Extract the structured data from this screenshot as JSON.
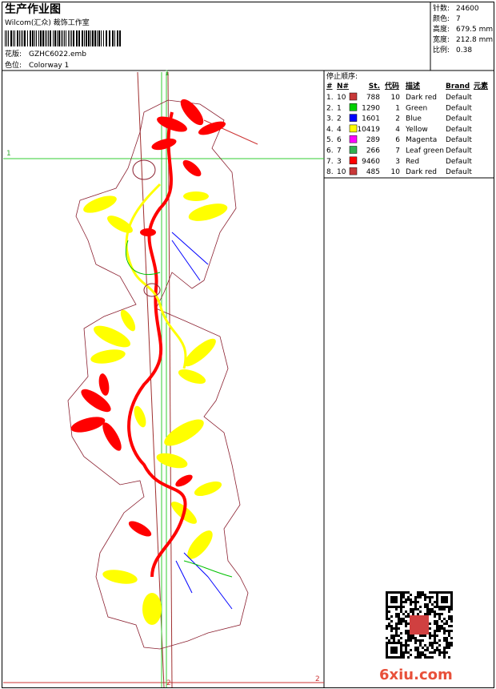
{
  "header": {
    "title": "生产作业图",
    "company": "Wilcom(汇众) 裁饰工作室",
    "design_label": "花版:",
    "design": "GZHC6022.emb",
    "colorway_label": "色位:",
    "colorway": "Colorway 1"
  },
  "stats": [
    {
      "label": "针数:",
      "value": "24600"
    },
    {
      "label": "颜色:",
      "value": "7"
    },
    {
      "label": "高度:",
      "value": "679.5 mm"
    },
    {
      "label": "宽度:",
      "value": "212.8 mm"
    },
    {
      "label": "比例:",
      "value": "0.38"
    }
  ],
  "stop_sequence": {
    "title": "停止顺序:",
    "headers": [
      "#",
      "N#",
      "St.",
      "代码",
      "描述",
      "Brand",
      "元素"
    ],
    "rows": [
      {
        "index": "1.",
        "needle": 10,
        "color": "#c83838",
        "stitches": 788,
        "code": 10,
        "description": "Dark red",
        "brand": "Default"
      },
      {
        "index": "2.",
        "needle": 1,
        "color": "#00d000",
        "stitches": 1290,
        "code": 1,
        "description": "Green",
        "brand": "Default"
      },
      {
        "index": "3.",
        "needle": 2,
        "color": "#0000ff",
        "stitches": 1601,
        "code": 2,
        "description": "Blue",
        "brand": "Default"
      },
      {
        "index": "4.",
        "needle": 4,
        "color": "#ffff00",
        "stitches": 10419,
        "code": 4,
        "description": "Yellow",
        "brand": "Default"
      },
      {
        "index": "5.",
        "needle": 6,
        "color": "#ff00ff",
        "stitches": 289,
        "code": 6,
        "description": "Magenta",
        "brand": "Default"
      },
      {
        "index": "6.",
        "needle": 7,
        "color": "#30b050",
        "stitches": 266,
        "code": 7,
        "description": "Leaf green",
        "brand": "Default"
      },
      {
        "index": "7.",
        "needle": 3,
        "color": "#ff0000",
        "stitches": 9460,
        "code": 3,
        "description": "Red",
        "brand": "Default"
      },
      {
        "index": "8.",
        "needle": 10,
        "color": "#c83838",
        "stitches": 485,
        "code": 10,
        "description": "Dark red",
        "brand": "Default"
      }
    ]
  },
  "guides": {
    "h1_left": "1",
    "v1_top": "1",
    "v2_bottom": "2",
    "h2_right": "2"
  },
  "watermark": "6xiu.com"
}
